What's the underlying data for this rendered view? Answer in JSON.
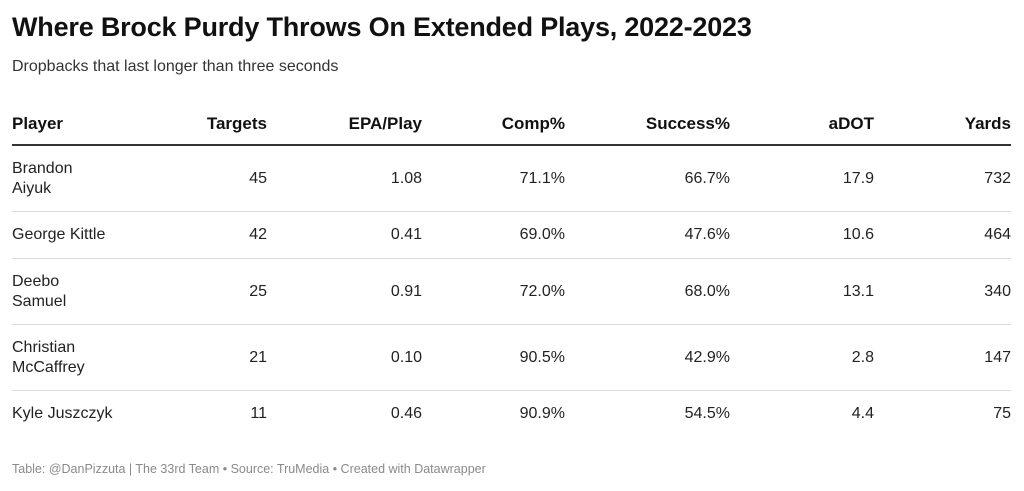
{
  "title": "Where Brock Purdy Throws On Extended Plays, 2022-2023",
  "subtitle": "Dropbacks that last longer than three seconds",
  "footer": "Table: @DanPizzuta | The 33rd Team • Source: TruMedia • Created with Datawrapper",
  "chart_data": {
    "type": "table",
    "columns": [
      "Player",
      "Targets",
      "EPA/Play",
      "Comp%",
      "Success%",
      "aDOT",
      "Yards"
    ],
    "rows": [
      [
        "Brandon Aiyuk",
        "45",
        "1.08",
        "71.1%",
        "66.7%",
        "17.9",
        "732"
      ],
      [
        "George Kittle",
        "42",
        "0.41",
        "69.0%",
        "47.6%",
        "10.6",
        "464"
      ],
      [
        "Deebo Samuel",
        "25",
        "0.91",
        "72.0%",
        "68.0%",
        "13.1",
        "340"
      ],
      [
        "Christian McCaffrey",
        "21",
        "0.10",
        "90.5%",
        "42.9%",
        "2.8",
        "147"
      ],
      [
        "Kyle Juszczyk",
        "11",
        "0.46",
        "90.9%",
        "54.5%",
        "4.4",
        "75"
      ]
    ]
  }
}
